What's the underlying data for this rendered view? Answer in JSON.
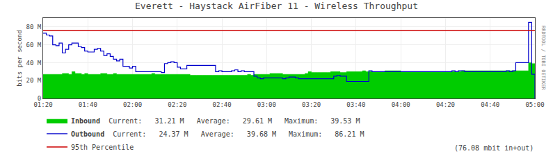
{
  "chart_data": {
    "type": "area",
    "title": "Everett - Haystack AirFiber 11 - Wireless Throughput",
    "ylabel": "bits per second",
    "line_style": "step",
    "grid": true,
    "ylim": [
      0,
      90
    ],
    "yticks": [
      0,
      {
        "value": 20,
        "label": "20 M"
      },
      {
        "value": 40,
        "label": "40 M"
      },
      {
        "value": 60,
        "label": "60 M"
      },
      {
        "value": 80,
        "label": "80 M"
      }
    ],
    "categories": [
      "01:20",
      null,
      null,
      null,
      null,
      null,
      null,
      null,
      null,
      null,
      null,
      null,
      null,
      null,
      "01:40",
      null,
      null,
      null,
      null,
      null,
      null,
      null,
      null,
      null,
      null,
      null,
      null,
      null,
      "02:00",
      null,
      null,
      null,
      null,
      null,
      null,
      null,
      null,
      null,
      null,
      null,
      null,
      null,
      "02:20",
      null,
      null,
      null,
      null,
      null,
      null,
      null,
      null,
      null,
      null,
      null,
      null,
      null,
      "02:40",
      null,
      null,
      null,
      null,
      null,
      null,
      null,
      null,
      null,
      null,
      null,
      null,
      null,
      "03:00",
      null,
      null,
      null,
      null,
      null,
      null,
      null,
      null,
      null,
      null,
      null,
      null,
      null,
      "03:20",
      null,
      null,
      null,
      null,
      null,
      null,
      null,
      null,
      null,
      null,
      null,
      null,
      null,
      "03:40",
      null,
      null,
      null,
      null,
      null,
      null,
      null,
      null,
      null,
      null,
      null,
      null,
      null,
      "04:00",
      null,
      null,
      null,
      null,
      null,
      null,
      null,
      null,
      null,
      null,
      null,
      null,
      null,
      "04:20",
      null,
      null,
      null,
      null,
      null,
      null,
      null,
      null,
      null,
      null,
      null,
      null,
      null,
      "04:40",
      null,
      null,
      null,
      null,
      null,
      null,
      null,
      null,
      null,
      null,
      null,
      null,
      null,
      "05:00"
    ],
    "series": [
      {
        "name": "Inbound",
        "type": "area",
        "color": "#00cc00",
        "stats": "  Current:   31.21 M   Average:   29.61 M   Maximum:   39.53 M",
        "values": [
          27,
          27,
          27,
          27,
          27,
          27,
          28,
          28,
          27,
          30,
          28,
          28,
          27,
          28,
          27,
          27,
          27,
          27,
          28,
          28,
          27,
          27,
          28,
          27,
          27,
          27,
          27,
          27,
          27,
          27,
          27,
          27,
          27,
          27,
          28,
          27,
          27,
          27,
          27,
          27,
          27,
          27,
          27,
          27,
          27,
          27,
          26,
          26,
          26,
          26,
          26,
          26,
          26,
          26,
          26,
          26,
          26,
          26,
          26,
          26,
          26,
          26,
          26,
          26,
          27,
          26,
          27,
          27,
          27,
          27,
          27,
          28,
          28,
          28,
          28,
          27,
          27,
          27,
          27,
          27,
          27,
          27,
          28,
          30,
          29,
          29,
          29,
          29,
          29,
          29,
          30,
          30,
          30,
          29,
          29,
          30,
          30,
          30,
          30,
          30,
          31,
          30,
          30,
          30,
          30,
          30,
          30,
          31,
          31,
          31,
          31,
          31,
          30,
          30,
          30,
          30,
          30,
          30,
          30,
          30,
          30,
          30,
          30,
          30,
          30,
          30,
          30,
          30,
          30,
          30,
          30,
          31,
          31,
          31,
          31,
          31,
          31,
          31,
          31,
          31,
          31,
          31,
          31,
          31,
          31,
          31,
          31,
          31,
          31,
          31,
          31,
          31,
          40,
          39,
          0
        ]
      },
      {
        "name": "Outbound",
        "type": "line",
        "color": "#0000cc",
        "stats": "  Current:   24.37 M   Average:   39.68 M   Maximum:   86.21 M",
        "values": [
          73,
          71,
          70,
          60,
          59,
          62,
          51,
          55,
          60,
          62,
          62,
          58,
          57,
          53,
          52,
          52,
          55,
          56,
          53,
          48,
          50,
          47,
          44,
          42,
          44,
          36,
          36,
          34,
          36,
          30,
          30,
          30,
          30,
          30,
          30,
          30,
          30,
          29,
          39,
          40,
          41,
          40,
          35,
          33,
          33,
          37,
          37,
          37,
          37,
          37,
          37,
          37,
          37,
          37,
          30,
          31,
          30,
          30,
          30,
          31,
          32,
          30,
          31,
          30,
          30,
          30,
          25,
          23,
          22,
          23,
          23,
          23,
          23,
          23,
          23,
          22,
          23,
          24,
          24,
          23,
          22,
          22,
          22,
          22,
          22,
          22,
          22,
          22,
          22,
          22,
          22,
          25,
          26,
          25,
          25,
          19,
          19,
          19,
          19,
          19,
          19,
          19,
          31,
          30,
          30,
          30,
          30,
          30,
          30,
          30,
          30,
          30,
          30,
          30,
          30,
          30,
          30,
          30,
          30,
          30,
          30,
          30,
          30,
          30,
          30,
          30,
          30,
          30,
          31,
          30,
          31,
          31,
          30,
          30,
          30,
          30,
          30,
          30,
          30,
          30,
          30,
          30,
          30,
          30,
          30,
          31,
          30,
          31,
          40,
          40,
          40,
          40,
          85,
          27,
          0
        ]
      }
    ],
    "reference_lines": [
      {
        "name": "95th Percentile",
        "value": 76.08,
        "color": "#cc0000"
      }
    ],
    "footer": "(76.08 mbit in+out)",
    "side_label": "RRDTOOL / TOBI OETIKER"
  }
}
